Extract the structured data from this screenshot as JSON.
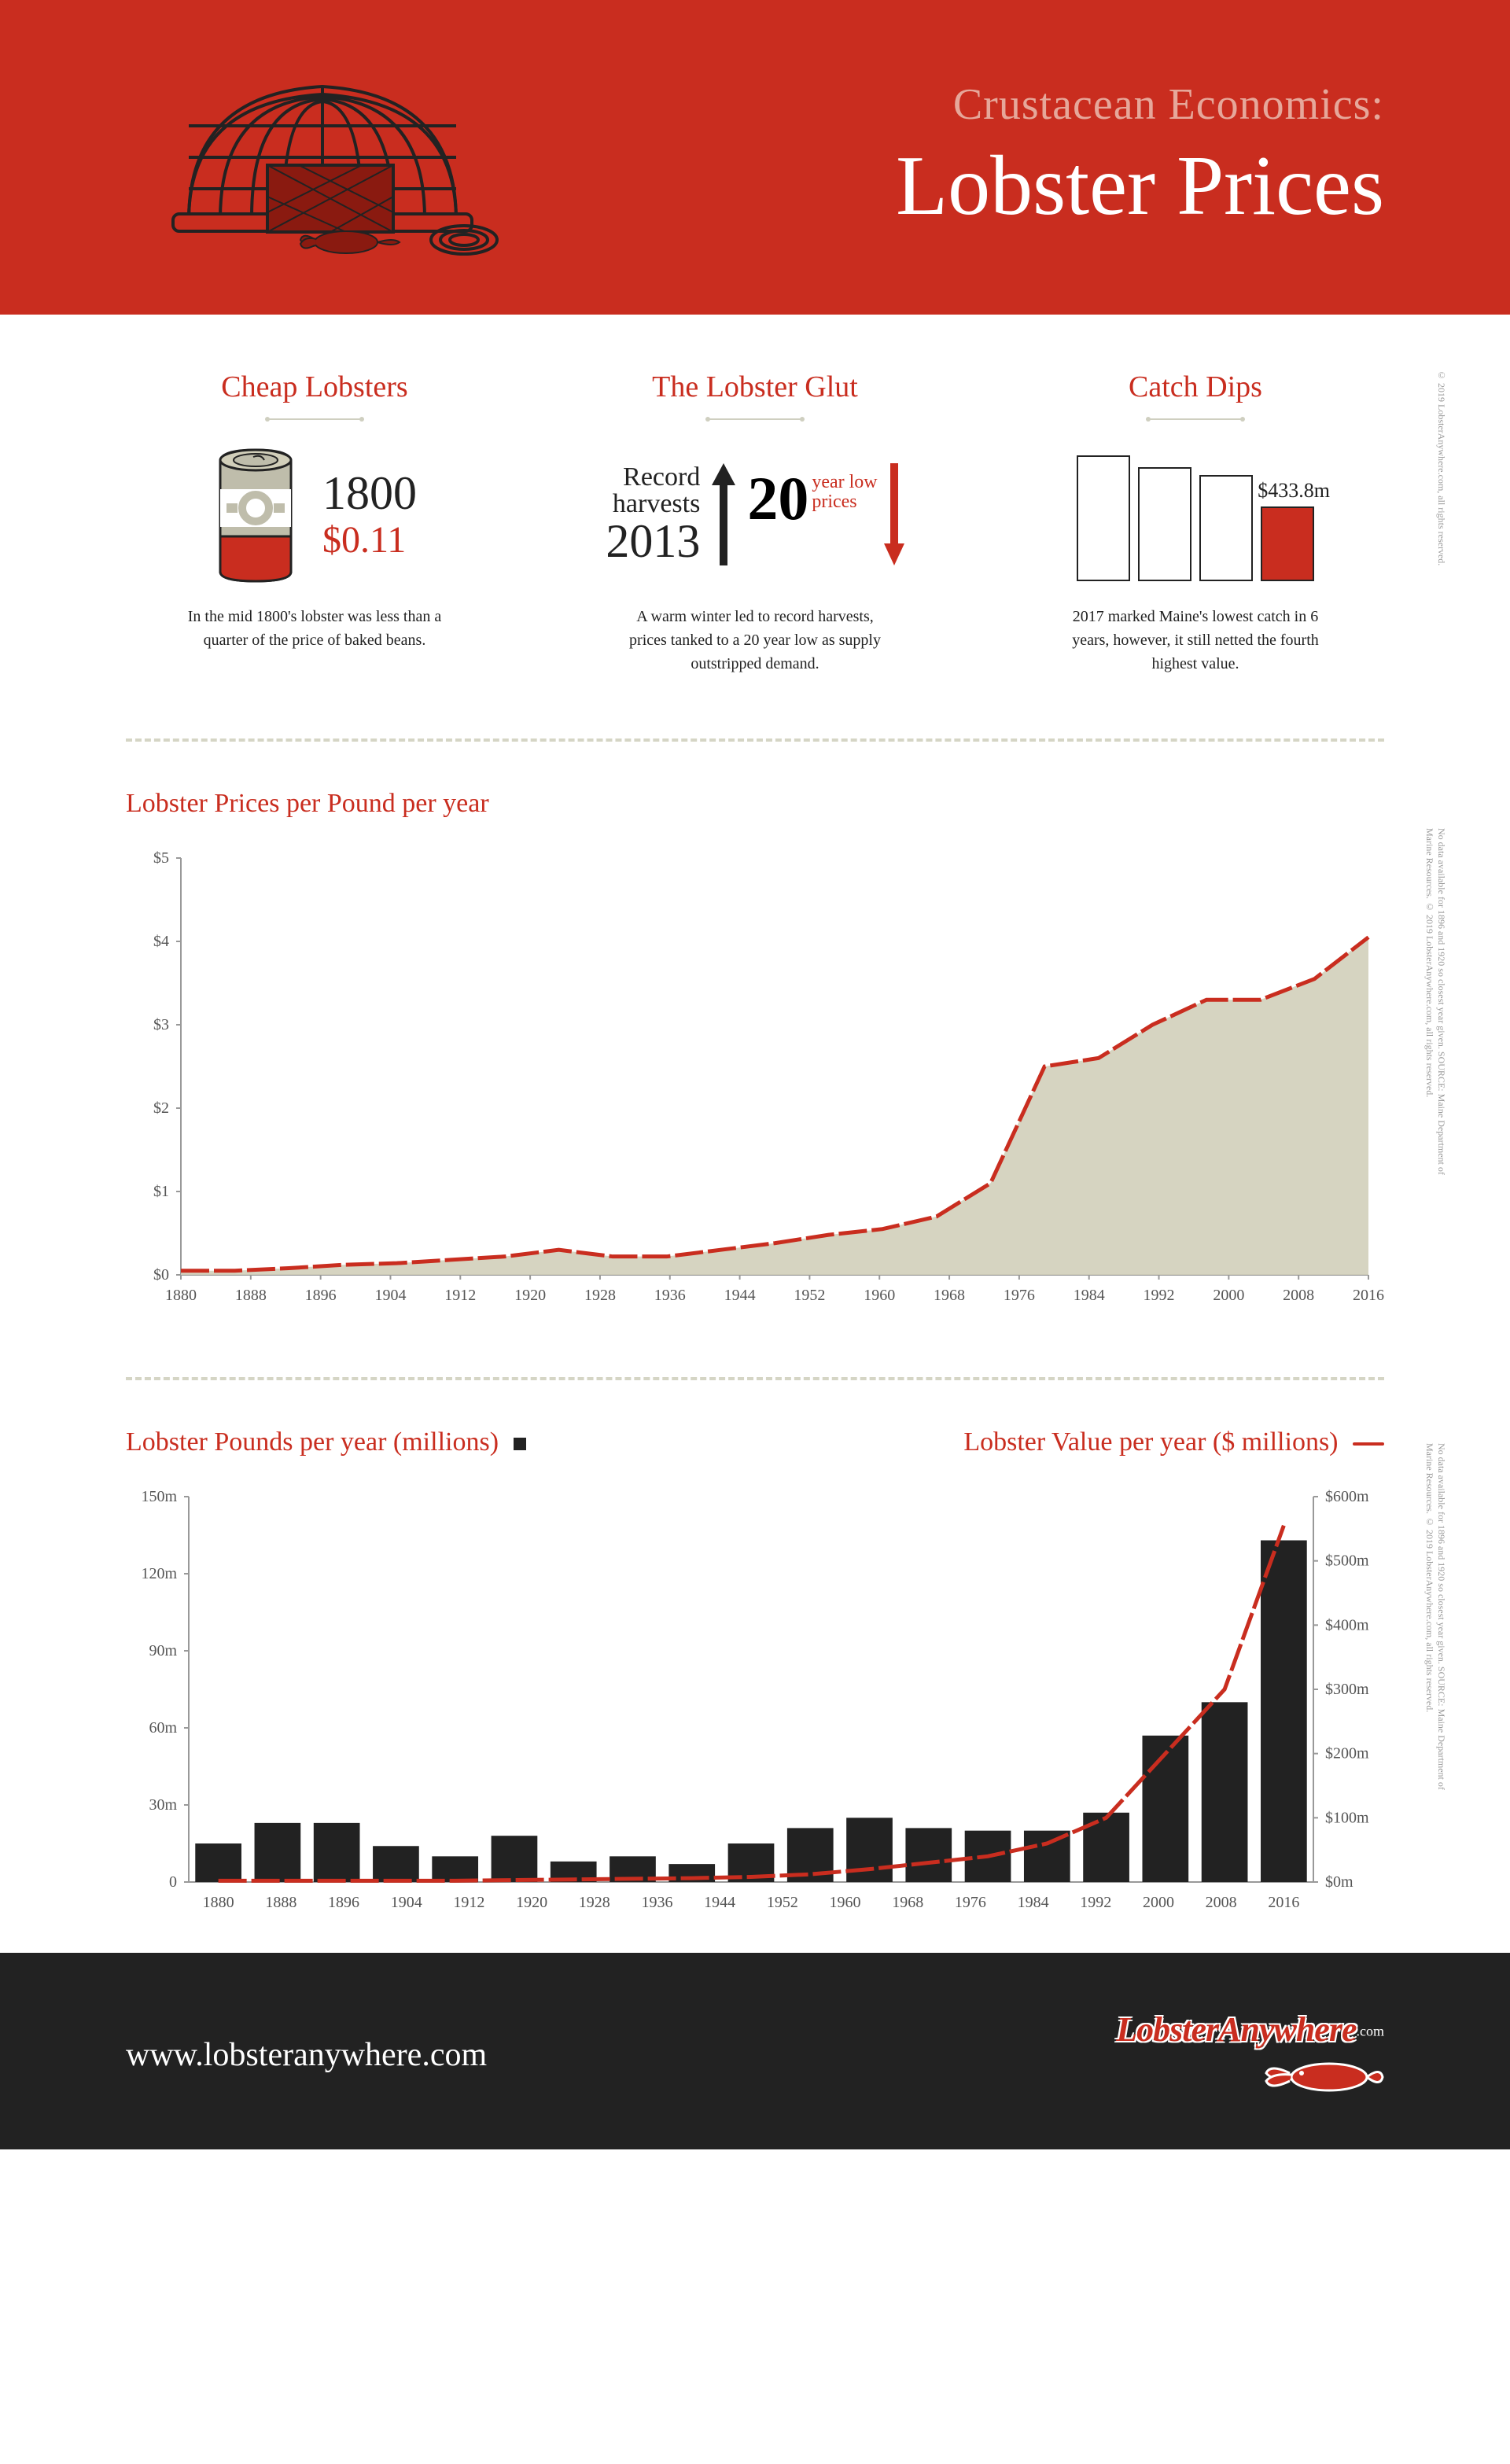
{
  "header": {
    "subtitle": "Crustacean Economics:",
    "title": "Lobster Prices",
    "bg_color": "#c92d1f",
    "subtitle_color": "#e6a79a",
    "title_color": "#ffffff"
  },
  "callouts": {
    "cheap": {
      "title": "Cheap Lobsters",
      "year": "1800",
      "price": "$0.11",
      "desc": "In the mid 1800's lobster was less than a quarter of the price of baked beans."
    },
    "glut": {
      "title": "The Lobster Glut",
      "record": "Record",
      "harvests": "harvests",
      "year": "2013",
      "big": "20",
      "line1": "year low",
      "line2": "prices",
      "desc": "A warm winter led to record harvests, prices tanked to a 20 year low as supply outstripped demand."
    },
    "dips": {
      "title": "Catch Dips",
      "value": "$433.8m",
      "bars": [
        {
          "h": 160,
          "fill": "#ffffff"
        },
        {
          "h": 145,
          "fill": "#ffffff"
        },
        {
          "h": 135,
          "fill": "#ffffff"
        },
        {
          "h": 95,
          "fill": "#c92d1f"
        }
      ],
      "desc": "2017 marked Maine's lowest catch in 6 years, however, it still netted the fourth highest value."
    },
    "side_copyright_top": "© 2019 LobsterAnywhere.com, all rights reserved."
  },
  "price_chart": {
    "type": "area",
    "title": "Lobster Prices per Pound per year",
    "xlabels": [
      "1880",
      "1888",
      "1896",
      "1904",
      "1912",
      "1920",
      "1928",
      "1936",
      "1944",
      "1952",
      "1960",
      "1968",
      "1976",
      "1984",
      "1992",
      "2000",
      "2008",
      "2016"
    ],
    "ylabels": [
      "$0",
      "$1",
      "$2",
      "$3",
      "$4",
      "$5"
    ],
    "ylim": [
      0,
      5
    ],
    "values": [
      0.05,
      0.05,
      0.08,
      0.12,
      0.14,
      0.18,
      0.22,
      0.3,
      0.22,
      0.22,
      0.3,
      0.38,
      0.48,
      0.55,
      0.7,
      1.1,
      2.5,
      2.6,
      3.0,
      3.3,
      3.3,
      3.55,
      4.05
    ],
    "line_color": "#c92d1f",
    "fill_color": "#d2cfba",
    "axis_color": "#999999",
    "line_width": 5,
    "side_note": "No data available for 1896 and 1920 so closest year given. SOURCE: Maine Department of Marine Resources. © 2019 LobsterAnywhere.com, all rights reserved."
  },
  "volume_chart": {
    "type": "bar+line",
    "title_left": "Lobster Pounds per year (millions)",
    "title_right": "Lobster Value per year ($ millions)",
    "xlabels": [
      "1880",
      "1888",
      "1896",
      "1904",
      "1912",
      "1920",
      "1928",
      "1936",
      "1944",
      "1952",
      "1960",
      "1968",
      "1976",
      "1984",
      "1992",
      "2000",
      "2008",
      "2016"
    ],
    "yleft_labels": [
      "0",
      "30m",
      "60m",
      "90m",
      "120m",
      "150m"
    ],
    "yleft_lim": [
      0,
      150
    ],
    "yright_labels": [
      "$0m",
      "$100m",
      "$200m",
      "$300m",
      "$400m",
      "$500m",
      "$600m"
    ],
    "yright_lim": [
      0,
      600
    ],
    "bar_values": [
      15,
      23,
      23,
      14,
      10,
      18,
      8,
      10,
      7,
      15,
      21,
      25,
      21,
      20,
      20,
      27,
      57,
      70,
      133
    ],
    "line_values": [
      2,
      2,
      2,
      2,
      2,
      3,
      4,
      5,
      6,
      8,
      12,
      20,
      30,
      40,
      60,
      100,
      200,
      300,
      555
    ],
    "bar_color": "#222222",
    "line_color": "#c92d1f",
    "axis_color": "#999999",
    "bar_width_ratio": 0.78,
    "line_width": 5,
    "side_note": "No data available for 1896 and 1920 so closest year given. SOURCE: Maine Department of Marine Resources. © 2019 LobsterAnywhere.com, all rights reserved."
  },
  "footer": {
    "url": "www.lobsteranywhere.com",
    "logo_text": "LobsterAnywhere",
    "logo_suffix": ".com",
    "bg_color": "#222222"
  }
}
